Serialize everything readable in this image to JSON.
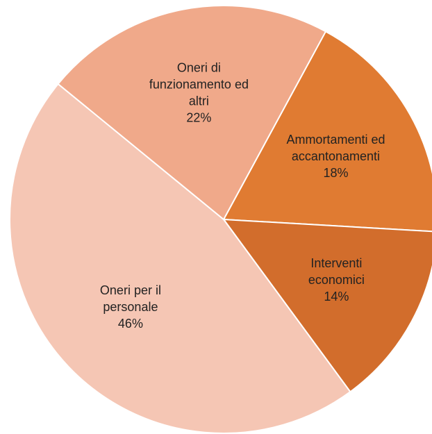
{
  "chart_data": {
    "type": "pie",
    "categories": [
      [
        "Ammortamenti ed",
        "accantonamenti"
      ],
      [
        "Interventi",
        "economici"
      ],
      [
        "Oneri per il",
        "personale"
      ],
      [
        "Oneri di",
        "funzionamento ed",
        "altri"
      ]
    ],
    "values": [
      18,
      14,
      46,
      22
    ],
    "value_labels": [
      "18%",
      "14%",
      "46%",
      "22%"
    ],
    "colors": [
      "#e07b32",
      "#d26d2c",
      "#f5c6b4",
      "#f0a98a"
    ]
  }
}
